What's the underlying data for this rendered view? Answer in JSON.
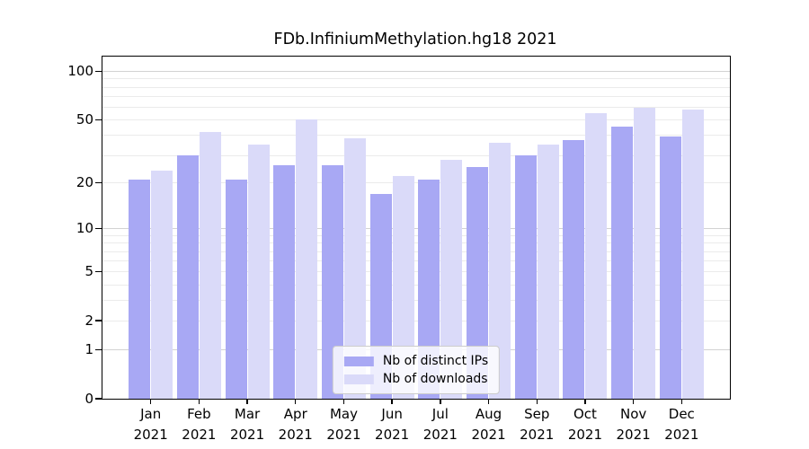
{
  "title": "FDb.InfiniumMethylation.hg18 2021",
  "chart_data": {
    "type": "bar",
    "title": "FDb.InfiniumMethylation.hg18 2021",
    "year_label": "2021",
    "months": [
      "Jan",
      "Feb",
      "Mar",
      "Apr",
      "May",
      "Jun",
      "Jul",
      "Aug",
      "Sep",
      "Oct",
      "Nov",
      "Dec"
    ],
    "series": [
      {
        "name": "Nb of distinct IPs",
        "color": "#a8a8f4",
        "values": [
          21,
          30,
          21,
          26,
          26,
          17,
          21,
          25,
          30,
          37,
          45,
          39
        ]
      },
      {
        "name": "Nb of downloads",
        "color": "#dadaf9",
        "values": [
          24,
          42,
          35,
          50,
          38,
          22,
          28,
          36,
          35,
          55,
          59,
          58
        ]
      }
    ],
    "y_axis": {
      "scale": "log1p",
      "tick_labels": [
        0,
        1,
        2,
        5,
        10,
        20,
        50,
        100
      ],
      "major_gridlines": [
        1,
        10,
        100
      ],
      "minor_gridlines": [
        2,
        3,
        4,
        5,
        6,
        7,
        8,
        9,
        20,
        30,
        40,
        50,
        60,
        70,
        80,
        90
      ],
      "ylim": [
        0,
        123
      ],
      "grid": true
    },
    "legend": {
      "position": "lower center",
      "entries": [
        "Nb of distinct IPs",
        "Nb of downloads"
      ]
    }
  },
  "colors": {
    "bar_distinct_ips": "#a8a8f4",
    "bar_downloads": "#dadaf9",
    "grid_major": "#d2d2d2",
    "grid_minor": "#ebebeb",
    "spine": "#000000",
    "legend_border": "#cccccc"
  }
}
